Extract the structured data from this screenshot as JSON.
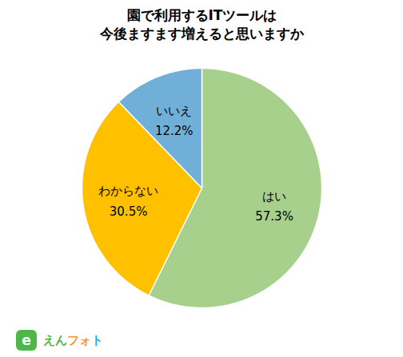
{
  "chart_data": {
    "type": "pie",
    "title": "園で利用するITツールは\n今後ますます増えると思いますか",
    "categories": [
      "はい",
      "わからない",
      "いいえ"
    ],
    "values": [
      57.3,
      30.5,
      12.2
    ],
    "value_labels": [
      "57.3%",
      "30.5%",
      "12.2%"
    ],
    "colors": [
      "#a8d08d",
      "#ffc000",
      "#70b0d8"
    ],
    "data_labels": true,
    "annotations": [
      {
        "text": "e",
        "color": "#ffffff"
      },
      {
        "text": "えん",
        "color": "#4db848"
      },
      {
        "text": "フォ",
        "color": "#f7941d"
      },
      {
        "text": "ト",
        "color": "#29abe2"
      }
    ]
  }
}
